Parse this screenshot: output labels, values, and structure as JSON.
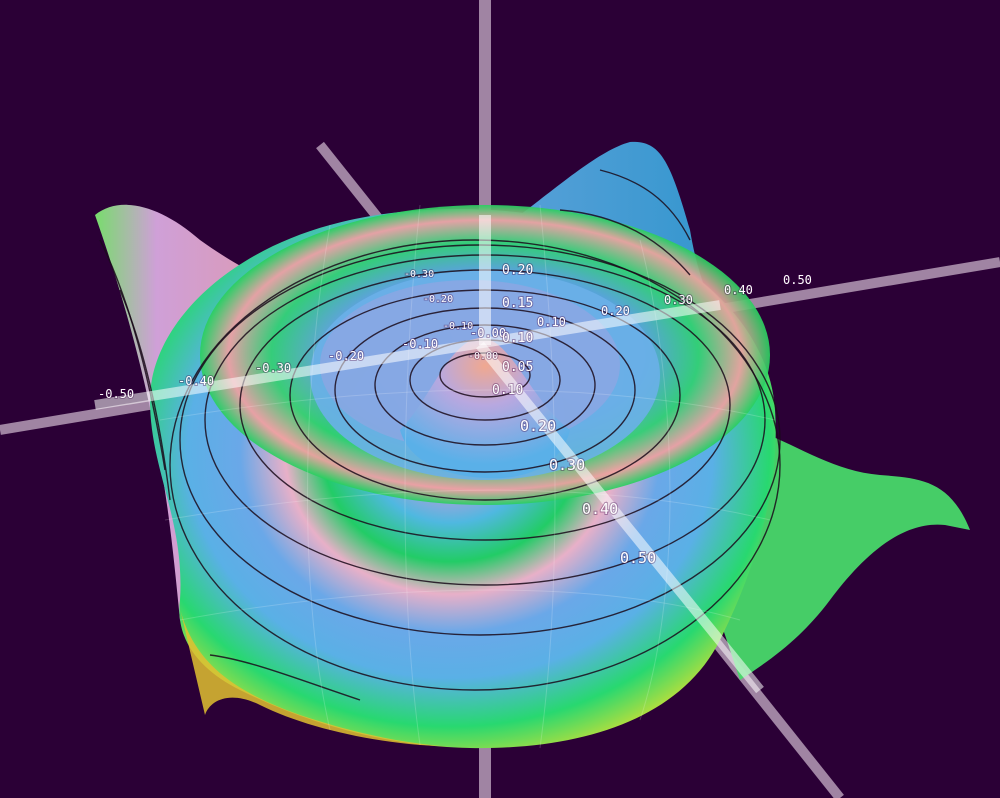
{
  "chart_data": {
    "type": "surface-3d",
    "function": "radial ripple z = r*cos(k*r) style surface with central peak and ring",
    "colors": {
      "background": "#2b0036",
      "axis_lines": "#c8b0c8",
      "contours": "#1a0a1a"
    },
    "axes": {
      "x": {
        "ticks": [
          "-0.50",
          "-0.40",
          "-0.30",
          "-0.20",
          "-0.10",
          "-0.00",
          "0.10",
          "0.20",
          "0.30",
          "0.40",
          "0.50"
        ],
        "range": [
          -0.5,
          0.5
        ]
      },
      "y": {
        "ticks": [
          "-0.30",
          "-0.20",
          "-0.10",
          "-0.00",
          "0.10",
          "0.15",
          "0.20"
        ],
        "range": [
          -0.3,
          0.2
        ]
      },
      "z": {
        "ticks": [
          "-0.00",
          "0.05",
          "0.10",
          "0.20",
          "0.30",
          "0.40",
          "0.50"
        ],
        "range": [
          0,
          0.5
        ]
      }
    },
    "contour_levels": 11,
    "grid": false,
    "legend": "none"
  }
}
